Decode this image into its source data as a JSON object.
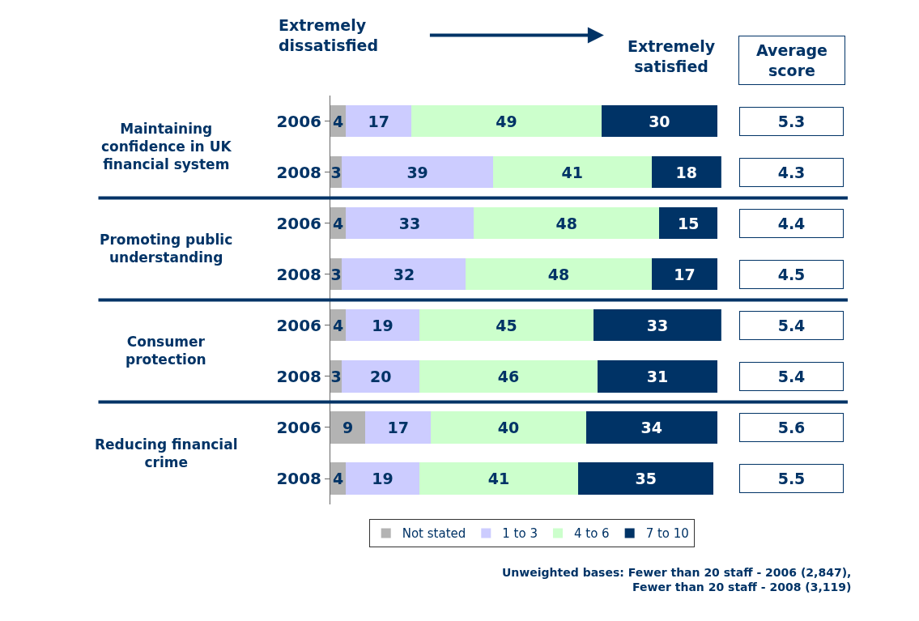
{
  "chart_data": {
    "type": "bar",
    "orientation": "horizontal",
    "stacked": true,
    "data_labels": true,
    "tick_labels": "y",
    "legend": "bottom",
    "categories": [
      "2006",
      "2008",
      "2006",
      "2008",
      "2006",
      "2008",
      "2006",
      "2008"
    ],
    "series": [
      {
        "name": "Not stated",
        "color": "#b3b3b3",
        "values": [
          4,
          3,
          4,
          3,
          4,
          3,
          9,
          4
        ]
      },
      {
        "name": "1 to 3",
        "color": "#ccccff",
        "values": [
          17,
          39,
          33,
          32,
          19,
          20,
          17,
          19
        ]
      },
      {
        "name": "4 to 6",
        "color": "#ccffcc",
        "values": [
          49,
          41,
          48,
          48,
          45,
          46,
          40,
          41
        ]
      },
      {
        "name": "7 to 10",
        "color": "#003366",
        "values": [
          30,
          18,
          15,
          17,
          33,
          31,
          34,
          35
        ]
      }
    ],
    "annotations": [
      "Extremely dissatisfied",
      "Extremely satisfied",
      "Average score",
      "5.3",
      "4.3",
      "4.4",
      "4.5",
      "5.4",
      "5.4",
      "5.6",
      "5.5",
      "Maintaining confidence in UK financial system",
      "Promoting public understanding",
      "Consumer protection",
      "Reducing financial crime",
      "Unweighted bases: Fewer than 20 staff - 2006 (2,847),\nFewer than 20 staff - 2008 (3,119)"
    ]
  }
}
